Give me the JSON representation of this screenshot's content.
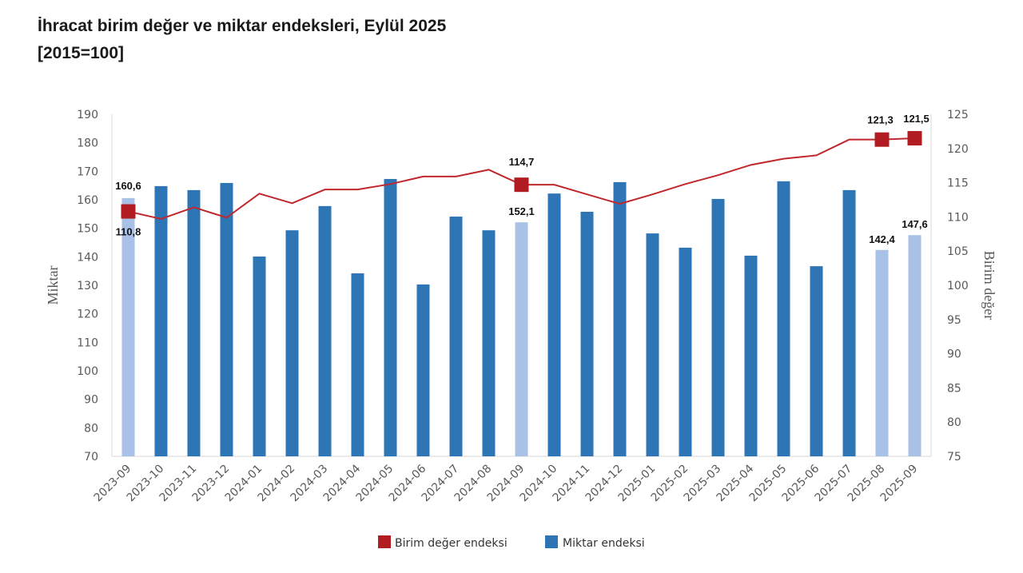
{
  "title_line1": "İhracat birim değer ve miktar endeksleri, Eylül 2025",
  "title_line2": "[2015=100]",
  "chart_data": {
    "type": "bar+line",
    "categories": [
      "2023-09",
      "2023-10",
      "2023-11",
      "2023-12",
      "2024-01",
      "2024-02",
      "2024-03",
      "2024-04",
      "2024-05",
      "2024-06",
      "2024-07",
      "2024-08",
      "2024-09",
      "2024-10",
      "2024-11",
      "2024-12",
      "2025-01",
      "2025-02",
      "2025-03",
      "2025-04",
      "2025-05",
      "2025-06",
      "2025-07",
      "2025-08",
      "2025-09"
    ],
    "series": [
      {
        "name": "Miktar endeksi",
        "type": "bar",
        "axis": "left",
        "color": "#2e75b6",
        "highlight_color": "#a9c1e6",
        "values": [
          160.6,
          164.8,
          163.4,
          165.9,
          140.1,
          149.3,
          157.8,
          134.2,
          167.3,
          130.3,
          154.1,
          149.3,
          152.1,
          162.2,
          155.8,
          166.2,
          148.2,
          143.2,
          160.3,
          140.4,
          166.5,
          136.7,
          163.4,
          142.4,
          147.6
        ],
        "highlighted": [
          0,
          12,
          23,
          24
        ],
        "labels": {
          "0": "160,6",
          "12": "152,1",
          "23": "142,4",
          "24": "147,6"
        }
      },
      {
        "name": "Birim değer endeksi",
        "type": "line",
        "axis": "right",
        "color": "#c0282d",
        "marker_color": "#b01c22",
        "values": [
          110.8,
          109.7,
          111.4,
          109.9,
          113.4,
          112.0,
          114.0,
          114.0,
          114.8,
          115.9,
          115.9,
          116.9,
          114.7,
          114.7,
          113.3,
          111.9,
          113.3,
          114.8,
          116.1,
          117.6,
          118.5,
          119.0,
          121.3,
          121.3,
          121.5
        ],
        "markers": [
          0,
          12,
          23,
          24
        ],
        "labels": {
          "0": "110,8",
          "12": "114,7",
          "23": "121,3",
          "24": "121,5"
        }
      }
    ],
    "ylabel_left": "Miktar",
    "ylabel_right": "Birim değer",
    "ylim_left": [
      70,
      190
    ],
    "yticks_left": [
      70,
      80,
      90,
      100,
      110,
      120,
      130,
      140,
      150,
      160,
      170,
      180,
      190
    ],
    "ylim_right": [
      75,
      125
    ],
    "yticks_right": [
      75,
      80,
      85,
      90,
      95,
      100,
      105,
      110,
      115,
      120,
      125
    ],
    "grid": false,
    "legend_position": "bottom"
  }
}
